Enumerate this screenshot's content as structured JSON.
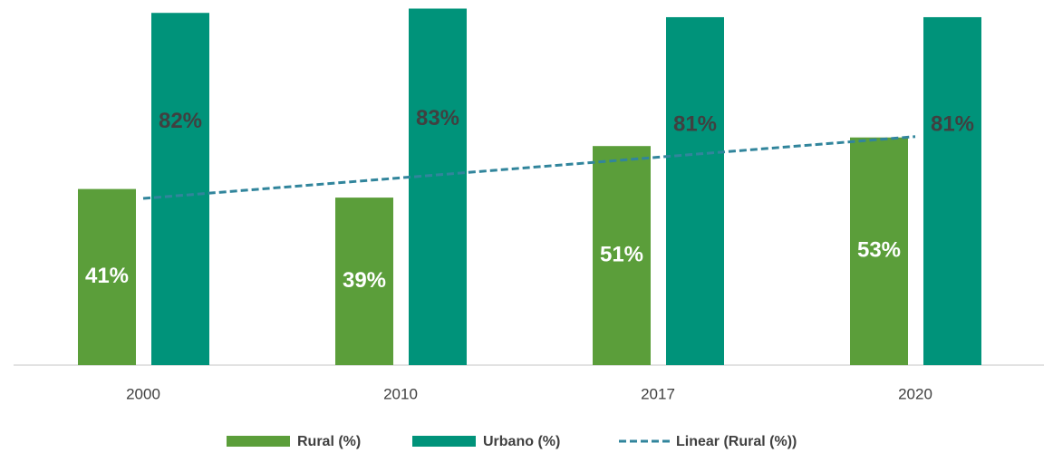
{
  "chart_data": {
    "type": "bar",
    "categories": [
      "2000",
      "2010",
      "2017",
      "2020"
    ],
    "series": [
      {
        "name": "Rural (%)",
        "color": "#5b9e3a",
        "values": [
          41,
          39,
          51,
          53
        ],
        "value_labels": [
          "41%",
          "39%",
          "51%",
          "53%"
        ],
        "label_color": "#ffffff"
      },
      {
        "name": "Urbano (%)",
        "color": "#00937a",
        "values": [
          82,
          83,
          81,
          81
        ],
        "value_labels": [
          "82%",
          "83%",
          "81%",
          "81%"
        ],
        "label_color": "#404040"
      },
      {
        "name": "Linear (Rural (%))",
        "color": "#31859c",
        "type": "line",
        "dashed": true,
        "values": [
          38.8,
          43.6,
          48.4,
          53.2
        ]
      }
    ],
    "ylim": [
      0,
      85
    ],
    "legend": "bottom"
  }
}
